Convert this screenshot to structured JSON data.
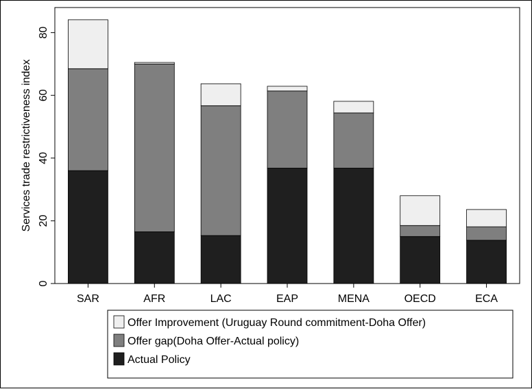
{
  "chart_data": {
    "type": "bar",
    "stacked": true,
    "title": "",
    "xlabel": "",
    "ylabel": "Services trade restrictiveness index",
    "ylim": [
      0,
      88
    ],
    "yticks": [
      0,
      20,
      40,
      60,
      80
    ],
    "categories": [
      "SAR",
      "AFR",
      "LAC",
      "EAP",
      "MENA",
      "OECD",
      "ECA"
    ],
    "series": [
      {
        "name": "Actual Policy",
        "color": "#1f1f1f",
        "values": [
          36.0,
          16.5,
          15.3,
          36.8,
          36.8,
          15.0,
          13.8
        ]
      },
      {
        "name": "Offer gap(Doha Offer-Actual policy)",
        "color": "#7f7f7f",
        "values": [
          32.5,
          53.5,
          41.4,
          24.6,
          17.6,
          3.5,
          4.3
        ]
      },
      {
        "name": "Offer Improvement (Uruguay Round commitment-Doha Offer)",
        "color": "#efefef",
        "values": [
          15.6,
          0.5,
          7.0,
          1.5,
          3.7,
          9.5,
          5.5
        ]
      }
    ],
    "legend": {
      "position": "bottom",
      "order": [
        "Offer Improvement (Uruguay Round commitment-Doha Offer)",
        "Offer gap(Doha Offer-Actual policy)",
        "Actual Policy"
      ]
    },
    "grid": false
  }
}
